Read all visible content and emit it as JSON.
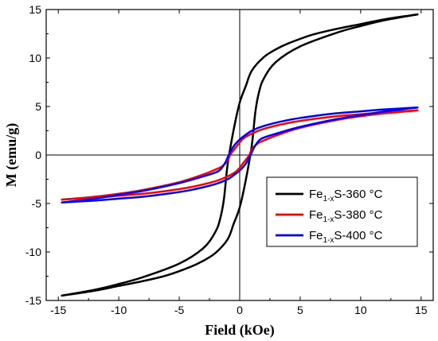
{
  "chart_data": {
    "type": "line",
    "xlabel": "Field (kOe)",
    "ylabel": "M (emu/g)",
    "xlim": [
      -16,
      16
    ],
    "ylim": [
      -15,
      15
    ],
    "xticks": [
      -15,
      -10,
      -5,
      0,
      5,
      10,
      15
    ],
    "xtick_labels": [
      "-15",
      "-10",
      "-5",
      "0",
      "5",
      "10",
      "15"
    ],
    "yticks": [
      -15,
      -10,
      -5,
      0,
      5,
      10,
      15
    ],
    "ytick_labels": [
      "-15",
      "-10",
      "-5",
      "0",
      "5",
      "10",
      "15"
    ],
    "legend_position": "right",
    "series": [
      {
        "name": "Fe1-xS-360 °C",
        "legend": {
          "base": "Fe",
          "sub": "1-x",
          "rest": "S-360 °C"
        },
        "color": "#000000",
        "branches": [
          {
            "x": [
              14.7,
              12,
              10,
              8,
              6,
              4,
              3,
              2,
              1,
              0.5,
              0,
              -0.5,
              -1,
              -1.3,
              -1.6,
              -2,
              -3,
              -5,
              -8,
              -10,
              -12,
              -14.7
            ],
            "y": [
              14.5,
              14.0,
              13.5,
              13.0,
              12.4,
              11.5,
              10.9,
              10.1,
              8.7,
              7.1,
              5.4,
              2.6,
              -1.0,
              -4.5,
              -6.5,
              -7.9,
              -9.6,
              -11.2,
              -12.6,
              -13.3,
              -13.9,
              -14.5
            ]
          },
          {
            "x": [
              -14.7,
              -12,
              -10,
              -8,
              -6,
              -4,
              -3,
              -2,
              -1,
              -0.5,
              0,
              0.5,
              1,
              1.3,
              1.6,
              2,
              3,
              5,
              8,
              10,
              12,
              14.7
            ],
            "y": [
              -14.5,
              -14.0,
              -13.5,
              -13.0,
              -12.4,
              -11.5,
              -10.9,
              -10.1,
              -8.7,
              -7.1,
              -5.4,
              -2.6,
              1.0,
              4.5,
              6.5,
              7.9,
              9.6,
              11.2,
              12.6,
              13.3,
              13.9,
              14.5
            ]
          }
        ]
      },
      {
        "name": "Fe1-xS-380 °C",
        "legend": {
          "base": "Fe",
          "sub": "1-x",
          "rest": "S-380 °C"
        },
        "color": "#ff0000",
        "branches": [
          {
            "x": [
              14.7,
              12,
              10,
              8,
              6,
              4,
              2,
              1,
              0.3,
              0,
              -0.5,
              -0.8,
              -1,
              -1.5,
              -2,
              -3,
              -5,
              -8,
              -10,
              -12,
              -14.7
            ],
            "y": [
              4.6,
              4.4,
              4.2,
              4.0,
              3.7,
              3.3,
              2.7,
              2.2,
              1.7,
              1.3,
              0.5,
              0.0,
              -0.6,
              -1.2,
              -1.5,
              -2.0,
              -2.8,
              -3.6,
              -4.0,
              -4.3,
              -4.6
            ]
          },
          {
            "x": [
              -14.7,
              -12,
              -10,
              -8,
              -6,
              -4,
              -2,
              -1,
              -0.3,
              0,
              0.5,
              0.8,
              1,
              1.5,
              2,
              3,
              5,
              8,
              10,
              12,
              14.7
            ],
            "y": [
              -4.6,
              -4.4,
              -4.2,
              -4.0,
              -3.7,
              -3.3,
              -2.7,
              -2.2,
              -1.7,
              -1.3,
              -0.5,
              0.0,
              0.6,
              1.2,
              1.5,
              2.0,
              2.8,
              3.6,
              4.0,
              4.3,
              4.6
            ]
          }
        ]
      },
      {
        "name": "Fe1-xS-400 °C",
        "legend": {
          "base": "Fe",
          "sub": "1-x",
          "rest": "S-400 °C"
        },
        "color": "#0000ff",
        "branches": [
          {
            "x": [
              14.7,
              12,
              10,
              8,
              6,
              4,
              2,
              1,
              0.3,
              0,
              -0.5,
              -0.9,
              -1.2,
              -1.6,
              -2,
              -3,
              -5,
              -8,
              -10,
              -12,
              -14.7
            ],
            "y": [
              4.9,
              4.7,
              4.5,
              4.3,
              4.0,
              3.6,
              3.0,
              2.5,
              1.9,
              1.6,
              0.9,
              0.0,
              -0.8,
              -1.5,
              -1.8,
              -2.2,
              -2.9,
              -3.7,
              -4.1,
              -4.5,
              -4.9
            ]
          },
          {
            "x": [
              -14.7,
              -12,
              -10,
              -8,
              -6,
              -4,
              -2,
              -1,
              -0.3,
              0,
              0.5,
              0.9,
              1.2,
              1.6,
              2,
              3,
              5,
              8,
              10,
              12,
              14.7
            ],
            "y": [
              -4.9,
              -4.7,
              -4.5,
              -4.3,
              -4.0,
              -3.6,
              -3.0,
              -2.5,
              -1.9,
              -1.6,
              -0.9,
              0.0,
              0.8,
              1.5,
              1.8,
              2.2,
              2.9,
              3.7,
              4.1,
              4.5,
              4.9
            ]
          }
        ]
      }
    ]
  }
}
